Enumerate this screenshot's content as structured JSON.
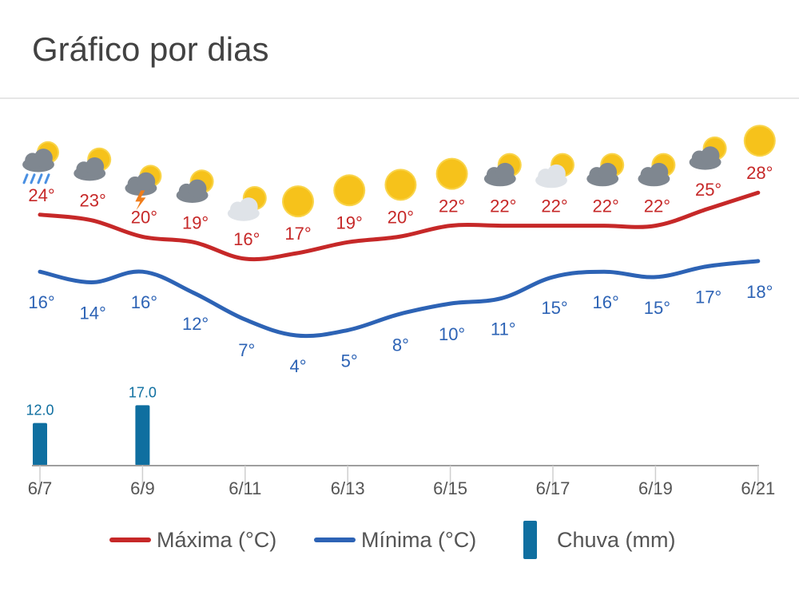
{
  "page": {
    "title": "Gráfico por dias"
  },
  "colors": {
    "max": "#c62828",
    "min": "#2d63b5",
    "rain": "#0f6fa0",
    "sun": "#f6c21b",
    "cloud": "#7f8790",
    "axis": "#9e9e9e",
    "tick_text": "#555555"
  },
  "chart_data": {
    "type": "line",
    "x": [
      "6/7",
      "6/8",
      "6/9",
      "6/10",
      "6/11",
      "6/12",
      "6/13",
      "6/14",
      "6/15",
      "6/16",
      "6/17",
      "6/18",
      "6/19",
      "6/20",
      "6/21"
    ],
    "x_tick_labels": [
      "6/7",
      "6/9",
      "6/11",
      "6/13",
      "6/15",
      "6/17",
      "6/19",
      "6/21"
    ],
    "series": [
      {
        "name": "Máxima (°C)",
        "values": [
          24,
          23,
          20,
          19,
          16,
          17,
          19,
          20,
          22,
          22,
          22,
          22,
          22,
          25,
          28
        ],
        "labels": [
          "24°",
          "23°",
          "20°",
          "19°",
          "16°",
          "17°",
          "19°",
          "20°",
          "22°",
          "22°",
          "22°",
          "22°",
          "22°",
          "25°",
          "28°"
        ]
      },
      {
        "name": "Mínima (°C)",
        "values": [
          16,
          14,
          16,
          12,
          7,
          4,
          5,
          8,
          10,
          11,
          15,
          16,
          15,
          17,
          18
        ],
        "labels": [
          "16°",
          "14°",
          "16°",
          "12°",
          "7°",
          "4°",
          "5°",
          "8°",
          "10°",
          "11°",
          "15°",
          "16°",
          "15°",
          "17°",
          "18°"
        ]
      },
      {
        "name": "Chuva (mm)",
        "type": "bar",
        "values": [
          12.0,
          0,
          17.0,
          0,
          0,
          0,
          0,
          0,
          0,
          0,
          0,
          0,
          0,
          0,
          0
        ],
        "labels": [
          "12.0",
          "",
          "17.0",
          "",
          "",
          "",
          "",
          "",
          "",
          "",
          "",
          "",
          "",
          "",
          ""
        ]
      }
    ],
    "icons": [
      "rain-cloud-icon",
      "cloud-sun-icon",
      "thunderstorm-icon",
      "cloud-sun-icon",
      "partly-cloudy-icon",
      "sun-icon",
      "sun-icon",
      "sun-icon",
      "sun-icon",
      "cloud-sun-icon",
      "partly-cloudy-icon",
      "cloud-sun-icon",
      "cloud-sun-icon",
      "cloud-sun-icon",
      "sun-icon"
    ],
    "legend": [
      {
        "label": "Máxima (°C)",
        "kind": "line",
        "color": "#c62828"
      },
      {
        "label": "Mínima (°C)",
        "kind": "line",
        "color": "#2d63b5"
      },
      {
        "label": "Chuva (mm)",
        "kind": "bar",
        "color": "#0f6fa0"
      }
    ],
    "legend_position": "bottom",
    "grid": false
  }
}
